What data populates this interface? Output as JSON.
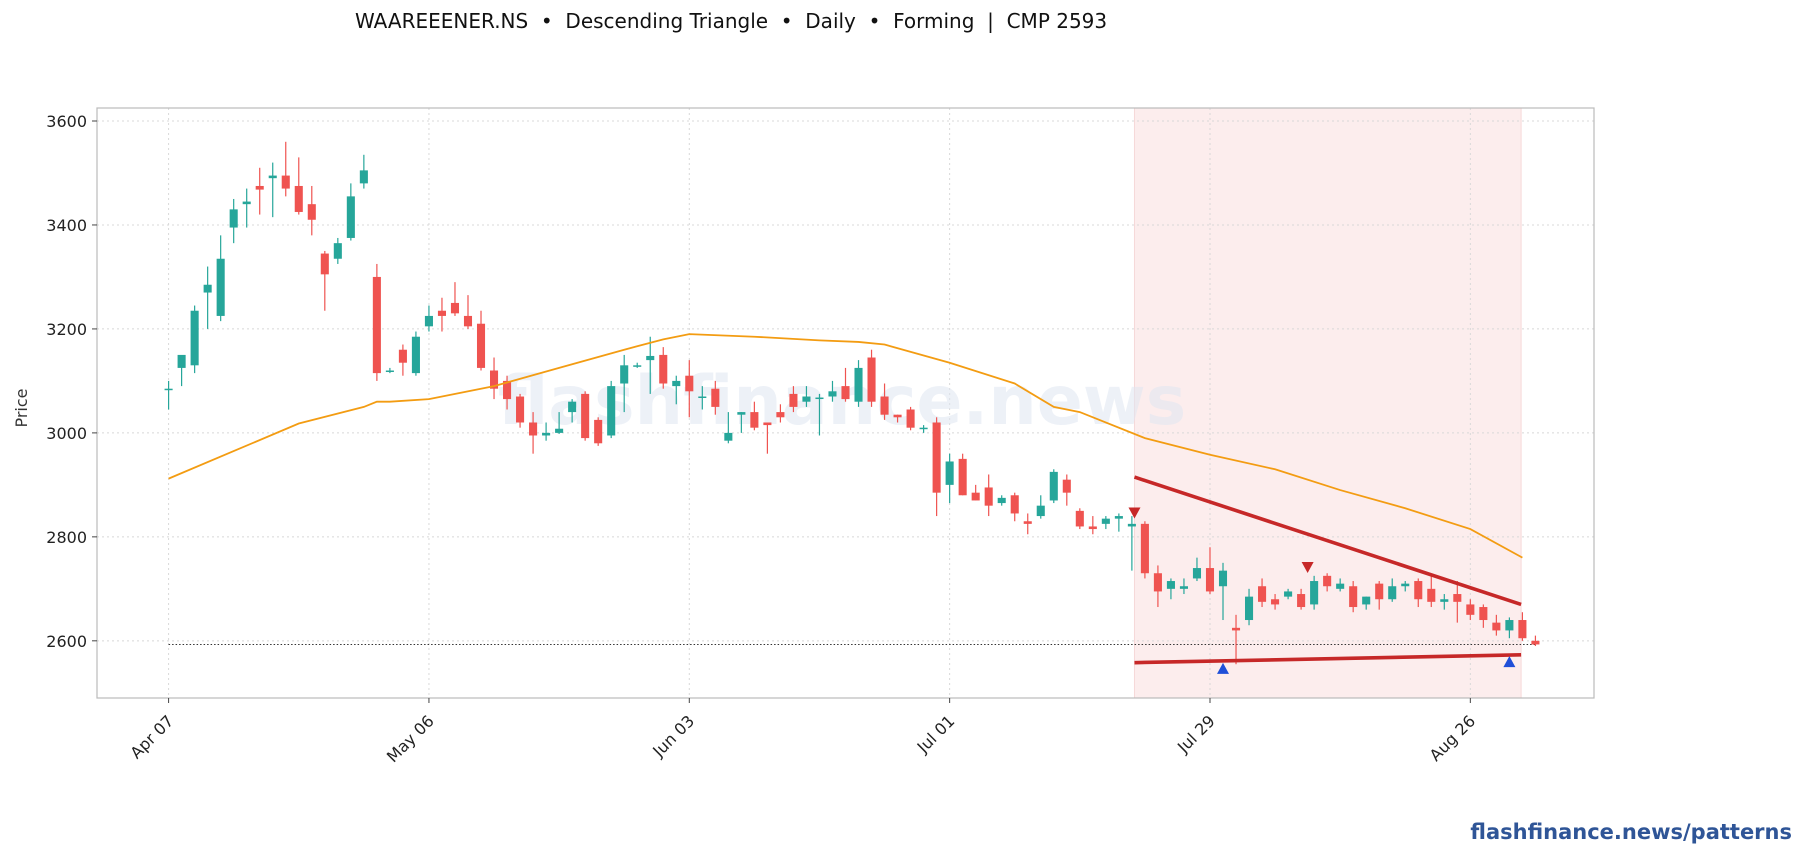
{
  "header": {
    "title": "WAAREEENER.NS  •  Descending Triangle  •  Daily  •  Forming  |  CMP 2593"
  },
  "footer": {
    "link": "flashfinance.news/patterns"
  },
  "watermark": "flashfinance.news",
  "colors": {
    "up": "#26a69a",
    "down": "#ef5350",
    "ma": "#f39c12",
    "trendline": "#c62828",
    "zone": "#fbe6e6",
    "peak_marker": "#c62828",
    "trough_marker": "#1f4fd8"
  },
  "chart_data": {
    "type": "candlestick",
    "ylabel": "Price",
    "ylim": [
      2490,
      3625
    ],
    "yticks": [
      2600,
      2800,
      3000,
      3200,
      3400,
      3600
    ],
    "xticks": [
      {
        "label": "Apr 07",
        "index": 0
      },
      {
        "label": "May 06",
        "index": 20
      },
      {
        "label": "Jun 03",
        "index": 40
      },
      {
        "label": "Jul 01",
        "index": 60
      },
      {
        "label": "Jul 29",
        "index": 80
      },
      {
        "label": "Aug 26",
        "index": 100
      }
    ],
    "x_range": [
      -5.5,
      109.5
    ],
    "grid": true,
    "cmp": 2593,
    "pattern_zone": [
      74.2,
      103.9
    ],
    "ohlc": [
      [
        3085,
        3100,
        3045,
        3085
      ],
      [
        3125,
        3145,
        3090,
        3150
      ],
      [
        3130,
        3245,
        3115,
        3235
      ],
      [
        3270,
        3320,
        3200,
        3285
      ],
      [
        3225,
        3380,
        3215,
        3335
      ],
      [
        3395,
        3450,
        3365,
        3430
      ],
      [
        3440,
        3470,
        3395,
        3445
      ],
      [
        3475,
        3510,
        3420,
        3468
      ],
      [
        3490,
        3520,
        3415,
        3495
      ],
      [
        3495,
        3560,
        3455,
        3470
      ],
      [
        3475,
        3530,
        3420,
        3425
      ],
      [
        3440,
        3475,
        3380,
        3410
      ],
      [
        3345,
        3350,
        3235,
        3305
      ],
      [
        3335,
        3375,
        3325,
        3365
      ],
      [
        3375,
        3480,
        3370,
        3455
      ],
      [
        3480,
        3535,
        3470,
        3505
      ],
      [
        3300,
        3325,
        3100,
        3115
      ],
      [
        3120,
        3125,
        3115,
        3120
      ],
      [
        3160,
        3170,
        3110,
        3135
      ],
      [
        3115,
        3195,
        3110,
        3185
      ],
      [
        3205,
        3245,
        3195,
        3225
      ],
      [
        3235,
        3260,
        3195,
        3225
      ],
      [
        3250,
        3290,
        3225,
        3230
      ],
      [
        3225,
        3265,
        3200,
        3205
      ],
      [
        3210,
        3235,
        3120,
        3125
      ],
      [
        3120,
        3145,
        3065,
        3085
      ],
      [
        3100,
        3110,
        3045,
        3065
      ],
      [
        3070,
        3075,
        3010,
        3020
      ],
      [
        3020,
        3040,
        2960,
        2995
      ],
      [
        2995,
        3020,
        2985,
        3000
      ],
      [
        3000,
        3040,
        2998,
        3008
      ],
      [
        3040,
        3065,
        3020,
        3060
      ],
      [
        3075,
        3080,
        2985,
        2990
      ],
      [
        3025,
        3030,
        2975,
        2980
      ],
      [
        2995,
        3100,
        2990,
        3090
      ],
      [
        3095,
        3150,
        3040,
        3130
      ],
      [
        3130,
        3135,
        3125,
        3130
      ],
      [
        3140,
        3185,
        3075,
        3148
      ],
      [
        3150,
        3165,
        3085,
        3095
      ],
      [
        3090,
        3110,
        3055,
        3100
      ],
      [
        3110,
        3140,
        3030,
        3080
      ],
      [
        3070,
        3090,
        3045,
        3070
      ],
      [
        3085,
        3100,
        3035,
        3050
      ],
      [
        2985,
        3040,
        2980,
        3000
      ],
      [
        3035,
        3040,
        3000,
        3040
      ],
      [
        3040,
        3060,
        3005,
        3010
      ],
      [
        3020,
        3020,
        2960,
        3015
      ],
      [
        3040,
        3055,
        3020,
        3030
      ],
      [
        3075,
        3090,
        3040,
        3050
      ],
      [
        3060,
        3090,
        3050,
        3070
      ],
      [
        3068,
        3075,
        2995,
        3068
      ],
      [
        3070,
        3100,
        3060,
        3080
      ],
      [
        3090,
        3125,
        3060,
        3065
      ],
      [
        3060,
        3140,
        3050,
        3125
      ],
      [
        3145,
        3160,
        3050,
        3060
      ],
      [
        3070,
        3095,
        3025,
        3035
      ],
      [
        3035,
        3035,
        3020,
        3030
      ],
      [
        3045,
        3050,
        3005,
        3010
      ],
      [
        3010,
        3015,
        3000,
        3010
      ],
      [
        3020,
        3030,
        2840,
        2885
      ],
      [
        2900,
        2960,
        2865,
        2945
      ],
      [
        2950,
        2960,
        2880,
        2880
      ],
      [
        2885,
        2900,
        2870,
        2870
      ],
      [
        2895,
        2920,
        2840,
        2860
      ],
      [
        2865,
        2880,
        2860,
        2875
      ],
      [
        2880,
        2885,
        2830,
        2845
      ],
      [
        2830,
        2845,
        2805,
        2825
      ],
      [
        2840,
        2880,
        2835,
        2860
      ],
      [
        2870,
        2930,
        2865,
        2925
      ],
      [
        2910,
        2920,
        2860,
        2885
      ],
      [
        2850,
        2855,
        2815,
        2820
      ],
      [
        2820,
        2840,
        2805,
        2815
      ],
      [
        2825,
        2840,
        2815,
        2835
      ],
      [
        2835,
        2845,
        2810,
        2840
      ],
      [
        2820,
        2840,
        2735,
        2825
      ],
      [
        2825,
        2830,
        2720,
        2730
      ],
      [
        2730,
        2745,
        2665,
        2695
      ],
      [
        2700,
        2720,
        2680,
        2715
      ],
      [
        2700,
        2720,
        2690,
        2705
      ],
      [
        2720,
        2760,
        2715,
        2740
      ],
      [
        2740,
        2780,
        2690,
        2695
      ],
      [
        2705,
        2750,
        2640,
        2735
      ],
      [
        2625,
        2650,
        2555,
        2620
      ],
      [
        2640,
        2700,
        2630,
        2685
      ],
      [
        2705,
        2720,
        2665,
        2675
      ],
      [
        2680,
        2690,
        2660,
        2670
      ],
      [
        2685,
        2700,
        2680,
        2695
      ],
      [
        2690,
        2700,
        2660,
        2665
      ],
      [
        2670,
        2725,
        2660,
        2715
      ],
      [
        2725,
        2730,
        2695,
        2705
      ],
      [
        2700,
        2720,
        2695,
        2710
      ],
      [
        2705,
        2715,
        2655,
        2665
      ],
      [
        2670,
        2685,
        2660,
        2685
      ],
      [
        2710,
        2715,
        2660,
        2680
      ],
      [
        2680,
        2720,
        2675,
        2705
      ],
      [
        2705,
        2715,
        2695,
        2710
      ],
      [
        2715,
        2720,
        2665,
        2680
      ],
      [
        2700,
        2725,
        2665,
        2675
      ],
      [
        2675,
        2690,
        2660,
        2680
      ],
      [
        2690,
        2715,
        2635,
        2675
      ],
      [
        2670,
        2680,
        2640,
        2650
      ],
      [
        2665,
        2670,
        2625,
        2640
      ],
      [
        2635,
        2650,
        2610,
        2620
      ],
      [
        2620,
        2645,
        2605,
        2640
      ],
      [
        2640,
        2655,
        2600,
        2605
      ],
      [
        2600,
        2610,
        2590,
        2593
      ]
    ],
    "moving_average": [
      [
        0,
        2912
      ],
      [
        5,
        2965
      ],
      [
        10,
        3018
      ],
      [
        15,
        3050
      ],
      [
        16,
        3060
      ],
      [
        17,
        3060
      ],
      [
        20,
        3065
      ],
      [
        25,
        3090
      ],
      [
        30,
        3125
      ],
      [
        35,
        3160
      ],
      [
        38,
        3180
      ],
      [
        40,
        3190
      ],
      [
        45,
        3185
      ],
      [
        50,
        3178
      ],
      [
        53,
        3175
      ],
      [
        55,
        3170
      ],
      [
        60,
        3135
      ],
      [
        65,
        3095
      ],
      [
        68,
        3050
      ],
      [
        70,
        3040
      ],
      [
        75,
        2990
      ],
      [
        80,
        2958
      ],
      [
        85,
        2930
      ],
      [
        90,
        2890
      ],
      [
        95,
        2855
      ],
      [
        100,
        2815
      ],
      [
        104,
        2760
      ]
    ],
    "resistance_line": [
      [
        74.2,
        2915
      ],
      [
        103.9,
        2670
      ]
    ],
    "support_line": [
      [
        74.2,
        2558
      ],
      [
        103.9,
        2573
      ]
    ],
    "peak_markers": [
      [
        74.2,
        2845
      ],
      [
        87.5,
        2740
      ]
    ],
    "trough_markers": [
      [
        81,
        2548
      ],
      [
        103,
        2561
      ]
    ]
  }
}
